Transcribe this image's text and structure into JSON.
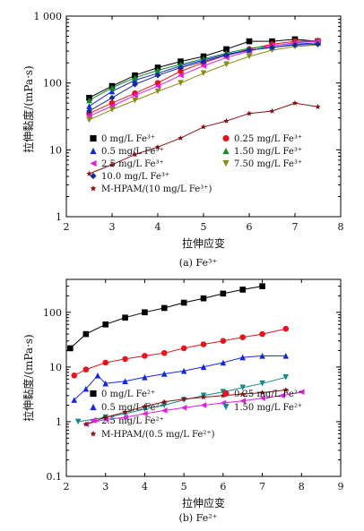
{
  "chart_data": [
    {
      "type": "scatter",
      "caption": "(a) Fe³⁺",
      "xlabel": "拉伸应变",
      "ylabel": "拉伸黏度/(mPa·s)",
      "xlim": [
        2,
        8
      ],
      "ylim": [
        1,
        1000
      ],
      "yscale": "log",
      "xticks": [
        "2",
        "3",
        "4",
        "5",
        "6",
        "7",
        "8"
      ],
      "yticks": [
        "1",
        "10",
        "100",
        "1 000"
      ],
      "series": [
        {
          "name": "0 mg/L Fe³⁺",
          "color": "#000000",
          "marker": "square",
          "x": [
            2.5,
            3.0,
            3.5,
            4.0,
            4.5,
            5.0,
            5.5,
            6.0,
            6.5,
            7.0,
            7.5
          ],
          "y": [
            60,
            90,
            130,
            170,
            210,
            250,
            320,
            420,
            420,
            450,
            420
          ]
        },
        {
          "name": "0.25 mg/L Fe³⁺",
          "color": "#e8141c",
          "marker": "circle",
          "x": [
            2.5,
            3.0,
            3.5,
            4.0,
            4.5,
            5.0,
            5.5,
            6.0,
            6.5,
            7.0,
            7.5
          ],
          "y": [
            35,
            50,
            70,
            100,
            150,
            200,
            260,
            320,
            380,
            420,
            430
          ]
        },
        {
          "name": "0.5 mg/L Fe³⁺",
          "color": "#1428e0",
          "marker": "triangle",
          "x": [
            2.5,
            3.0,
            3.5,
            4.0,
            4.5,
            5.0,
            5.5,
            6.0,
            6.5,
            7.0,
            7.5
          ],
          "y": [
            45,
            75,
            110,
            140,
            180,
            220,
            270,
            310,
            340,
            380,
            400
          ]
        },
        {
          "name": "1.50 mg/L Fe³⁺",
          "color": "#128a2c",
          "marker": "triangle",
          "x": [
            2.5,
            3.0,
            3.5,
            4.0,
            4.5,
            5.0,
            5.5,
            6.0,
            6.5,
            7.0,
            7.5
          ],
          "y": [
            55,
            85,
            120,
            155,
            190,
            230,
            280,
            330,
            360,
            400,
            430
          ]
        },
        {
          "name": "2.5 mg/L Fe³⁺",
          "color": "#e020e0",
          "marker": "triangle-left",
          "x": [
            2.5,
            3.0,
            3.5,
            4.0,
            4.5,
            5.0,
            5.5,
            6.0,
            6.5,
            7.0,
            7.5
          ],
          "y": [
            32,
            45,
            65,
            90,
            130,
            180,
            240,
            300,
            360,
            400,
            420
          ]
        },
        {
          "name": "7.50 mg/L Fe³⁺",
          "color": "#8a8a14",
          "marker": "triangle-down",
          "x": [
            2.5,
            3.0,
            3.5,
            4.0,
            4.5,
            5.0,
            5.5,
            6.0,
            6.5,
            7.0,
            7.5
          ],
          "y": [
            28,
            40,
            55,
            75,
            100,
            140,
            190,
            250,
            310,
            350,
            370
          ]
        },
        {
          "name": "10.0 mg/L Fe³⁺",
          "color": "#122a9a",
          "marker": "diamond",
          "x": [
            2.5,
            3.0,
            3.5,
            4.0,
            4.5,
            5.0,
            5.5,
            6.0,
            6.5,
            7.0,
            7.5
          ],
          "y": [
            38,
            60,
            95,
            130,
            170,
            210,
            260,
            310,
            340,
            370,
            380
          ]
        },
        {
          "name": "M-HPAM/(10 mg/L Fe³⁺)",
          "color": "#8a1010",
          "marker": "star",
          "x": [
            2.5,
            3.0,
            3.5,
            4.0,
            4.5,
            5.0,
            5.5,
            6.0,
            6.5,
            7.0,
            7.5
          ],
          "y": [
            4.4,
            6.0,
            8.5,
            11,
            15,
            22,
            27,
            35,
            38,
            50,
            44
          ]
        }
      ]
    },
    {
      "type": "scatter",
      "caption": "(b) Fe²⁺",
      "xlabel": "拉伸应变",
      "ylabel": "拉伸黏度/(mPa·s)",
      "xlim": [
        2,
        9
      ],
      "ylim": [
        0.1,
        400
      ],
      "yscale": "log",
      "xticks": [
        "2",
        "3",
        "4",
        "5",
        "6",
        "7",
        "8",
        "9"
      ],
      "yticks": [
        "0.1",
        "1",
        "10",
        "100"
      ],
      "series": [
        {
          "name": "0 mg/L Fe²⁺",
          "color": "#000000",
          "marker": "square",
          "x": [
            2.1,
            2.5,
            3.0,
            3.5,
            4.0,
            4.5,
            5.0,
            5.5,
            6.0,
            6.5,
            7.0
          ],
          "y": [
            22,
            40,
            60,
            80,
            100,
            120,
            150,
            180,
            220,
            260,
            300
          ]
        },
        {
          "name": "0.25 mg/L Fe²⁺",
          "color": "#e8141c",
          "marker": "circle",
          "x": [
            2.2,
            2.5,
            3.0,
            3.5,
            4.0,
            4.5,
            5.0,
            5.5,
            6.0,
            6.5,
            7.0,
            7.6
          ],
          "y": [
            7,
            9,
            12,
            14,
            16,
            18,
            22,
            26,
            30,
            35,
            40,
            50
          ]
        },
        {
          "name": "0.5 mg/L Fe²⁺",
          "color": "#1428e0",
          "marker": "triangle",
          "x": [
            2.2,
            2.5,
            2.8,
            3.0,
            3.5,
            4.0,
            4.5,
            5.0,
            5.5,
            6.0,
            6.5,
            7.0,
            7.6
          ],
          "y": [
            2.5,
            4.0,
            7.0,
            5.0,
            5.5,
            6.5,
            7.5,
            8.5,
            10,
            12,
            15,
            16,
            16
          ]
        },
        {
          "name": "1.50 mg/L Fe²⁺",
          "color": "#128a8a",
          "marker": "triangle-down",
          "x": [
            2.3,
            3.0,
            3.5,
            4.0,
            4.5,
            5.0,
            5.5,
            6.0,
            6.5,
            7.0,
            7.6
          ],
          "y": [
            1.0,
            1.2,
            1.4,
            1.7,
            2.0,
            2.5,
            3.0,
            3.5,
            4.2,
            5.0,
            6.5
          ]
        },
        {
          "name": "2.5 mg/L Fe²⁺",
          "color": "#e020e0",
          "marker": "triangle-left",
          "x": [
            2.5,
            3.0,
            3.5,
            4.0,
            4.5,
            5.0,
            5.5,
            6.0,
            6.5,
            7.0,
            7.5,
            8.0
          ],
          "y": [
            0.9,
            1.1,
            1.2,
            1.4,
            1.6,
            1.8,
            2.0,
            2.2,
            2.4,
            2.7,
            3.0,
            3.5
          ]
        },
        {
          "name": "M-HPAM/(0.5 mg/L Fe²⁺)",
          "color": "#8a1010",
          "marker": "star",
          "x": [
            2.5,
            3.0,
            3.5,
            4.0,
            4.5,
            5.0,
            5.5,
            6.0,
            6.5,
            7.0,
            7.6
          ],
          "y": [
            0.9,
            1.2,
            1.5,
            1.9,
            2.3,
            2.6,
            2.8,
            3.0,
            3.2,
            3.4,
            3.8
          ]
        }
      ]
    }
  ]
}
